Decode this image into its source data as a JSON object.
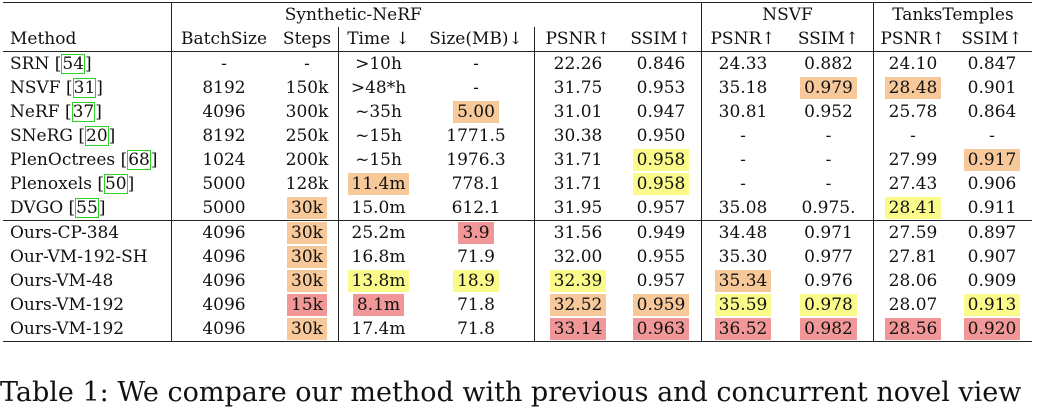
{
  "table": {
    "header": {
      "method": "Method",
      "groups": {
        "synthetic": "Synthetic-NeRF",
        "nsvf": "NSVF",
        "tanks": "TanksTemples"
      },
      "columns": [
        "BatchSize",
        "Steps",
        "Time ↓",
        "Size(MB)↓",
        "PSNR↑",
        "SSIM↑",
        "PSNR↑",
        "SSIM↑",
        "PSNR↑",
        "SSIM↑"
      ]
    },
    "rows": [
      {
        "method": "SRN ",
        "ref": "54",
        "cells": [
          {
            "v": "-"
          },
          {
            "v": "-"
          },
          {
            "v": ">10h"
          },
          {
            "v": "-"
          },
          {
            "v": "22.26"
          },
          {
            "v": "0.846"
          },
          {
            "v": "24.33"
          },
          {
            "v": "0.882"
          },
          {
            "v": "24.10"
          },
          {
            "v": "0.847"
          }
        ]
      },
      {
        "method": "NSVF ",
        "ref": "31",
        "cells": [
          {
            "v": "8192"
          },
          {
            "v": "150k"
          },
          {
            "v": ">48*h"
          },
          {
            "v": "-"
          },
          {
            "v": "31.75"
          },
          {
            "v": "0.953"
          },
          {
            "v": "35.18"
          },
          {
            "v": "0.979",
            "hl": "orange"
          },
          {
            "v": "28.48",
            "hl": "orange"
          },
          {
            "v": "0.901"
          }
        ]
      },
      {
        "method": "NeRF ",
        "ref": "37",
        "cells": [
          {
            "v": "4096"
          },
          {
            "v": "300k"
          },
          {
            "v": "~35h"
          },
          {
            "v": "5.00",
            "hl": "orange"
          },
          {
            "v": "31.01"
          },
          {
            "v": "0.947"
          },
          {
            "v": "30.81"
          },
          {
            "v": "0.952"
          },
          {
            "v": "25.78"
          },
          {
            "v": "0.864"
          }
        ]
      },
      {
        "method": "SNeRG ",
        "ref": "20",
        "cells": [
          {
            "v": "8192"
          },
          {
            "v": "250k"
          },
          {
            "v": "~15h"
          },
          {
            "v": "1771.5"
          },
          {
            "v": "30.38"
          },
          {
            "v": "0.950"
          },
          {
            "v": "-"
          },
          {
            "v": "-"
          },
          {
            "v": "-"
          },
          {
            "v": "-"
          }
        ]
      },
      {
        "method": "PlenOctrees ",
        "ref": "68",
        "cells": [
          {
            "v": "1024"
          },
          {
            "v": "200k"
          },
          {
            "v": "~15h"
          },
          {
            "v": "1976.3"
          },
          {
            "v": "31.71"
          },
          {
            "v": "0.958",
            "hl": "yellow"
          },
          {
            "v": "-"
          },
          {
            "v": "-"
          },
          {
            "v": "27.99"
          },
          {
            "v": "0.917",
            "hl": "orange"
          }
        ]
      },
      {
        "method": "Plenoxels ",
        "ref": "50",
        "cells": [
          {
            "v": "5000"
          },
          {
            "v": "128k"
          },
          {
            "v": "11.4m",
            "hl": "orange"
          },
          {
            "v": "778.1"
          },
          {
            "v": "31.71"
          },
          {
            "v": "0.958",
            "hl": "yellow"
          },
          {
            "v": "-"
          },
          {
            "v": "-"
          },
          {
            "v": "27.43"
          },
          {
            "v": "0.906"
          }
        ]
      },
      {
        "method": "DVGO ",
        "ref": "55",
        "cells": [
          {
            "v": "5000"
          },
          {
            "v": "30k",
            "hl": "orange"
          },
          {
            "v": "15.0m"
          },
          {
            "v": "612.1"
          },
          {
            "v": "31.95"
          },
          {
            "v": "0.957"
          },
          {
            "v": "35.08"
          },
          {
            "v": "0.975."
          },
          {
            "v": "28.41",
            "hl": "yellow"
          },
          {
            "v": "0.911"
          }
        ]
      },
      {
        "method": "Ours-CP-384",
        "ref": "",
        "cells": [
          {
            "v": "4096"
          },
          {
            "v": "30k",
            "hl": "orange"
          },
          {
            "v": "25.2m"
          },
          {
            "v": "3.9",
            "hl": "red"
          },
          {
            "v": "31.56"
          },
          {
            "v": "0.949"
          },
          {
            "v": "34.48"
          },
          {
            "v": "0.971"
          },
          {
            "v": "27.59"
          },
          {
            "v": "0.897"
          }
        ]
      },
      {
        "method": "Our-VM-192-SH",
        "ref": "",
        "cells": [
          {
            "v": "4096"
          },
          {
            "v": "30k",
            "hl": "orange"
          },
          {
            "v": "16.8m"
          },
          {
            "v": "71.9"
          },
          {
            "v": "32.00"
          },
          {
            "v": "0.955"
          },
          {
            "v": "35.30"
          },
          {
            "v": "0.977"
          },
          {
            "v": "27.81"
          },
          {
            "v": "0.907"
          }
        ]
      },
      {
        "method": "Ours-VM-48",
        "ref": "",
        "cells": [
          {
            "v": "4096"
          },
          {
            "v": "30k",
            "hl": "orange"
          },
          {
            "v": "13.8m",
            "hl": "yellow"
          },
          {
            "v": "18.9",
            "hl": "yellow"
          },
          {
            "v": "32.39",
            "hl": "yellow"
          },
          {
            "v": "0.957"
          },
          {
            "v": "35.34",
            "hl": "orange"
          },
          {
            "v": "0.976"
          },
          {
            "v": "28.06"
          },
          {
            "v": "0.909"
          }
        ]
      },
      {
        "method": "Ours-VM-192",
        "ref": "",
        "cells": [
          {
            "v": "4096"
          },
          {
            "v": "15k",
            "hl": "red"
          },
          {
            "v": "8.1m",
            "hl": "red"
          },
          {
            "v": "71.8"
          },
          {
            "v": "32.52",
            "hl": "orange"
          },
          {
            "v": "0.959",
            "hl": "orange"
          },
          {
            "v": "35.59",
            "hl": "yellow"
          },
          {
            "v": "0.978",
            "hl": "yellow"
          },
          {
            "v": "28.07"
          },
          {
            "v": "0.913",
            "hl": "yellow"
          }
        ]
      },
      {
        "method": "Ours-VM-192",
        "ref": "",
        "cells": [
          {
            "v": "4096"
          },
          {
            "v": "30k",
            "hl": "orange"
          },
          {
            "v": "17.4m"
          },
          {
            "v": "71.8"
          },
          {
            "v": "33.14",
            "hl": "red"
          },
          {
            "v": "0.963",
            "hl": "red"
          },
          {
            "v": "36.52",
            "hl": "red"
          },
          {
            "v": "0.982",
            "hl": "red"
          },
          {
            "v": "28.56",
            "hl": "red"
          },
          {
            "v": "0.920",
            "hl": "red"
          }
        ]
      }
    ]
  },
  "caption": "Table 1: We compare our method with previous and concurrent novel view",
  "colors": {
    "yellow": "#fbfb8c",
    "orange": "#f6c89a",
    "red": "#f19797",
    "citation_box": "#29d329"
  }
}
